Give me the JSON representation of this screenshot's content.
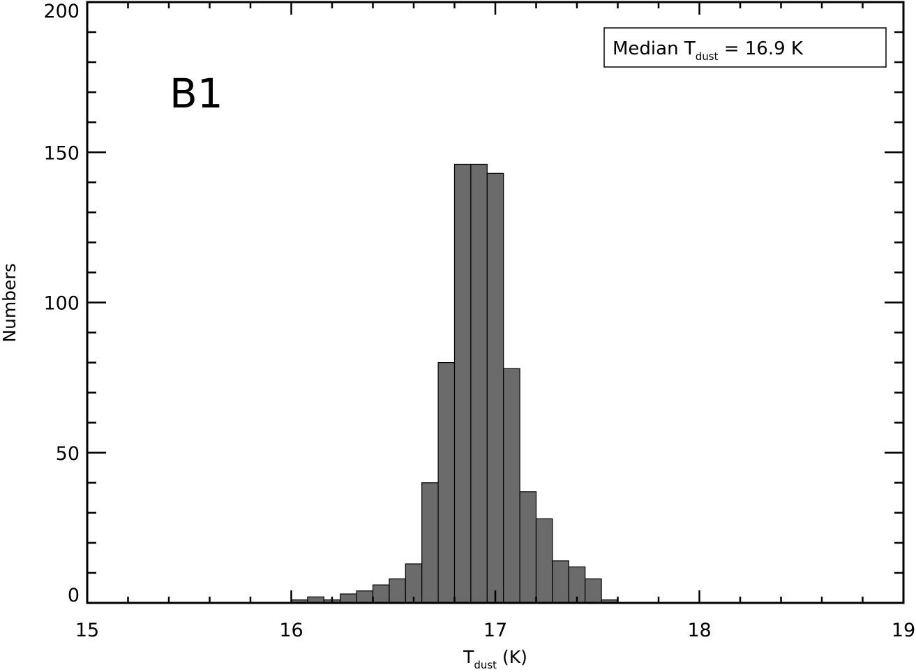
{
  "chart_data": {
    "type": "bar",
    "bar_style": "histogram",
    "panel_label": "B1",
    "xlabel": {
      "main": "T",
      "sub": "dust",
      "unit": " (K)"
    },
    "ylabel": "Numbers",
    "xlim": [
      15,
      19
    ],
    "ylim": [
      0,
      200
    ],
    "x_ticks": [
      "15",
      "16",
      "17",
      "18",
      "19"
    ],
    "y_ticks": [
      "0",
      "50",
      "100",
      "150",
      "200"
    ],
    "legend": {
      "prefix": "Median T",
      "sub": "dust",
      "suffix": " = 16.9 K",
      "placement": "top-right"
    },
    "bin_width": 0.08,
    "bins": [
      {
        "x0": 16.0,
        "count": 1
      },
      {
        "x0": 16.08,
        "count": 2
      },
      {
        "x0": 16.16,
        "count": 1
      },
      {
        "x0": 16.24,
        "count": 3
      },
      {
        "x0": 16.32,
        "count": 4
      },
      {
        "x0": 16.4,
        "count": 6
      },
      {
        "x0": 16.48,
        "count": 8
      },
      {
        "x0": 16.56,
        "count": 13
      },
      {
        "x0": 16.64,
        "count": 40
      },
      {
        "x0": 16.72,
        "count": 80
      },
      {
        "x0": 16.8,
        "count": 146
      },
      {
        "x0": 16.88,
        "count": 146
      },
      {
        "x0": 16.96,
        "count": 143
      },
      {
        "x0": 17.04,
        "count": 78
      },
      {
        "x0": 17.12,
        "count": 37
      },
      {
        "x0": 17.2,
        "count": 28
      },
      {
        "x0": 17.28,
        "count": 14
      },
      {
        "x0": 17.36,
        "count": 12
      },
      {
        "x0": 17.44,
        "count": 8
      },
      {
        "x0": 17.52,
        "count": 1
      }
    ],
    "bar_color": "#6b6b6b",
    "grid": false
  }
}
